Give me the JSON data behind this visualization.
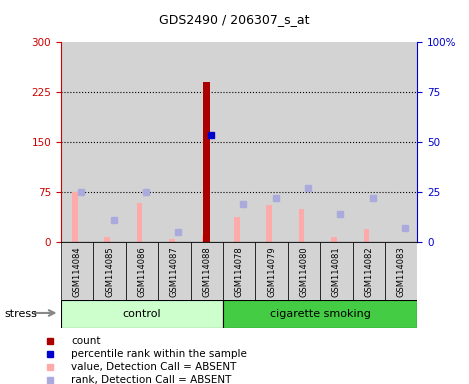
{
  "title": "GDS2490 / 206307_s_at",
  "samples": [
    "GSM114084",
    "GSM114085",
    "GSM114086",
    "GSM114087",
    "GSM114088",
    "GSM114078",
    "GSM114079",
    "GSM114080",
    "GSM114081",
    "GSM114082",
    "GSM114083"
  ],
  "groups": [
    "control",
    "control",
    "control",
    "control",
    "control",
    "cigarette smoking",
    "cigarette smoking",
    "cigarette smoking",
    "cigarette smoking",
    "cigarette smoking",
    "cigarette smoking"
  ],
  "count_values": [
    0,
    0,
    0,
    0,
    240,
    0,
    0,
    0,
    0,
    0,
    0
  ],
  "percentile_rank_left": [
    0,
    0,
    0,
    0,
    160,
    0,
    0,
    0,
    0,
    0,
    0
  ],
  "absent_value": [
    75,
    8,
    58,
    5,
    10,
    38,
    55,
    50,
    8,
    20,
    0
  ],
  "absent_rank_pct": [
    25,
    11,
    25,
    5,
    0,
    19,
    22,
    27,
    14,
    22,
    7
  ],
  "ylim_left": [
    0,
    300
  ],
  "ylim_right": [
    0,
    100
  ],
  "yticks_left": [
    0,
    75,
    150,
    225,
    300
  ],
  "yticks_right": [
    0,
    25,
    50,
    75,
    100
  ],
  "ytick_labels_left": [
    "0",
    "75",
    "150",
    "225",
    "300"
  ],
  "ytick_labels_right": [
    "0",
    "25",
    "50",
    "75",
    "100%"
  ],
  "color_count": "#aa0000",
  "color_rank": "#0000cc",
  "color_absent_value": "#ffaaaa",
  "color_absent_rank": "#aaaadd",
  "color_left_axis": "#cc0000",
  "color_right_axis": "#0000cc",
  "bg_gray": "#d3d3d3",
  "bg_control": "#ccffcc",
  "bg_smoking": "#44cc44",
  "bar_width": 0.25,
  "stress_label": "stress",
  "control_label": "control",
  "smoking_label": "cigarette smoking",
  "legend_items": [
    {
      "color": "#aa0000",
      "label": "count"
    },
    {
      "color": "#0000cc",
      "label": "percentile rank within the sample"
    },
    {
      "color": "#ffaaaa",
      "label": "value, Detection Call = ABSENT"
    },
    {
      "color": "#aaaadd",
      "label": "rank, Detection Call = ABSENT"
    }
  ]
}
